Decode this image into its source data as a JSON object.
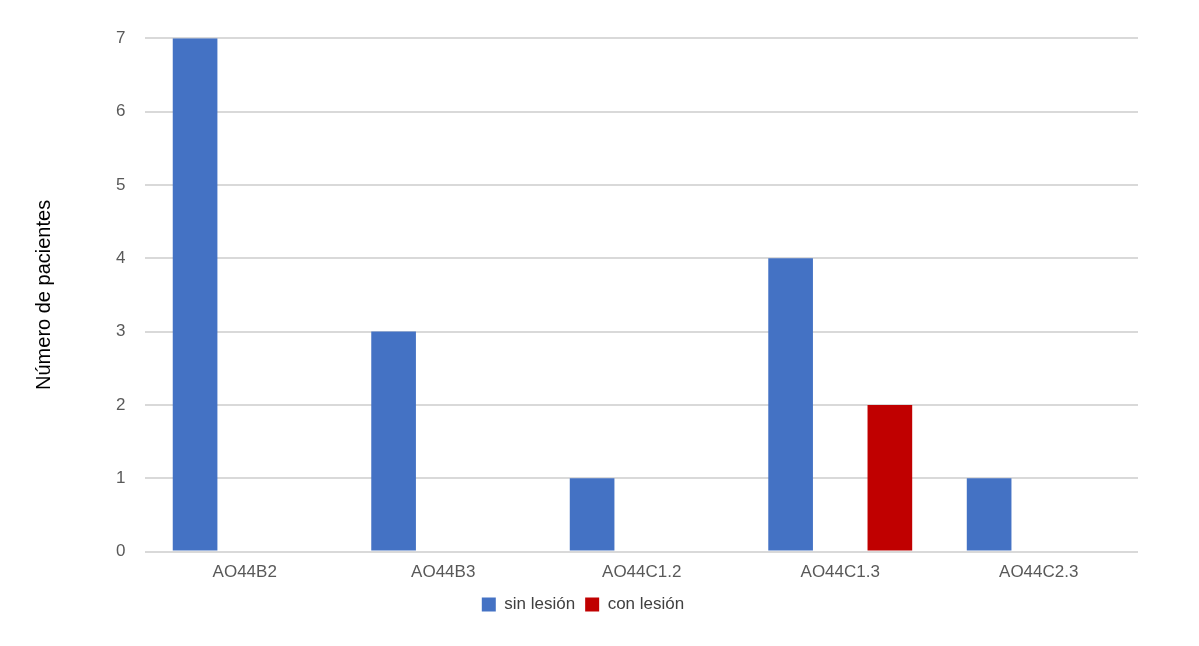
{
  "chart_data": {
    "type": "bar",
    "ylabel": "Número de pacientes",
    "categories": [
      "AO44B2",
      "AO44B3",
      "AO44C1.2",
      "AO44C1.3",
      "AO44C2.3"
    ],
    "series": [
      {
        "name": "sin lesión",
        "color": "#4472c4",
        "values": [
          7,
          3,
          1,
          4,
          1
        ]
      },
      {
        "name": "con lesión",
        "color": "#c00000",
        "values": [
          0,
          0,
          0,
          2,
          0
        ]
      }
    ],
    "ylim": [
      0,
      7
    ],
    "yticks": [
      0,
      1,
      2,
      3,
      4,
      5,
      6,
      7
    ],
    "grid": "y",
    "legend": "bottom"
  }
}
